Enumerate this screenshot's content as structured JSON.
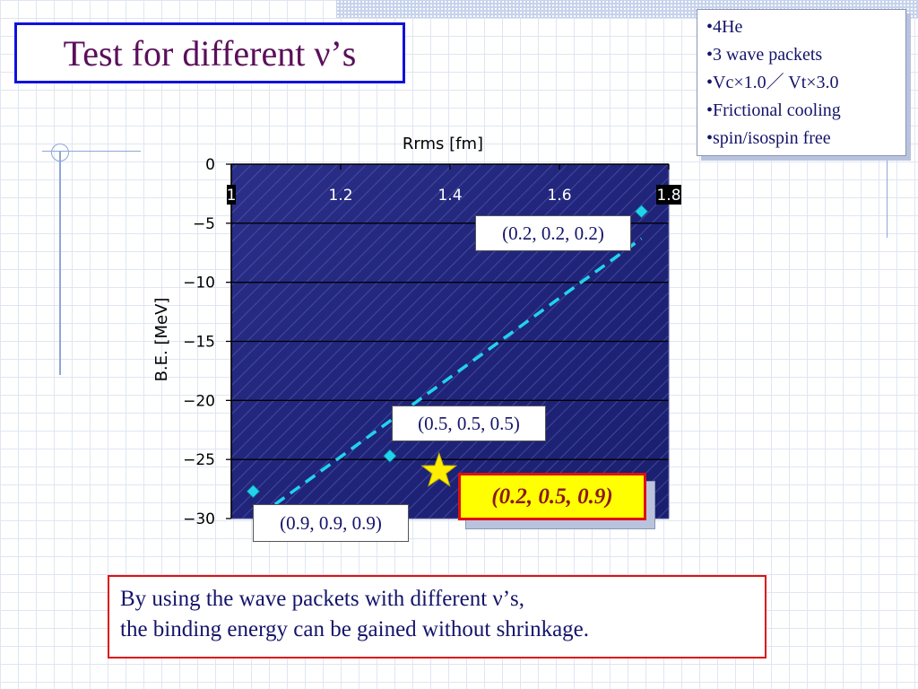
{
  "slide": {
    "title": "Test for different ν’s",
    "info_items": [
      "4He",
      "3 wave packets",
      "Vc×1.0／ Vt×3.0",
      "Frictional cooling",
      "spin/isospin free"
    ],
    "highlight_label": "(0.2, 0.5, 0.9)",
    "conclusion_lines": [
      "By using the wave packets with different ν’s,",
      "the binding energy can be gained without shrinkage."
    ]
  },
  "chart_data": {
    "type": "scatter",
    "title": "",
    "xlabel": "Rrms [fm]",
    "ylabel": "B.E. [MeV]",
    "xlim": [
      1.0,
      1.8
    ],
    "ylim": [
      -30,
      0
    ],
    "x_ticks": [
      "1",
      "1.2",
      "1.4",
      "1.6",
      "1.8"
    ],
    "x_tick_values": [
      1.0,
      1.2,
      1.4,
      1.6,
      1.8
    ],
    "y_ticks": [
      "0",
      "−5",
      "−10",
      "−15",
      "−20",
      "−25",
      "−30"
    ],
    "y_tick_values": [
      0,
      -5,
      -10,
      -15,
      -20,
      -25,
      -30
    ],
    "x_axis_position": "top",
    "grid": "horizontal",
    "plot_background": "#2a2f86",
    "series": [
      {
        "type": "scatter",
        "color": "#22d3ee",
        "points": [
          {
            "x": 1.75,
            "y": -4.0,
            "label": "(0.2, 0.2, 0.2)"
          },
          {
            "x": 1.29,
            "y": -24.7,
            "label": "(0.5, 0.5, 0.5)"
          },
          {
            "x": 1.04,
            "y": -27.7,
            "label": "(0.9, 0.9, 0.9)"
          }
        ]
      },
      {
        "type": "trendline",
        "style": "dashed",
        "color": "#22d3ee",
        "from": {
          "x": 1.08,
          "y": -28.8
        },
        "to": {
          "x": 1.75,
          "y": -6.3
        }
      },
      {
        "type": "marker",
        "symbol": "star",
        "color": "#ffee00",
        "points": [
          {
            "x": 1.38,
            "y": -26.0,
            "label": "(0.2, 0.5, 0.9)"
          }
        ]
      }
    ]
  }
}
